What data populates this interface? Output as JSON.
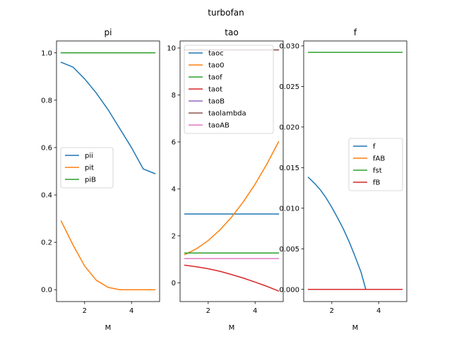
{
  "figure": {
    "suptitle": "turbofan",
    "background": "#ffffff",
    "colors": [
      "#1f77b4",
      "#ff7f0e",
      "#2ca02c",
      "#d62728",
      "#9467bd",
      "#8c564b",
      "#e377c2"
    ]
  },
  "chart_data": [
    {
      "type": "line",
      "title": "pi",
      "xlabel": "M",
      "ylabel": "",
      "xlim": [
        0.8,
        5.2
      ],
      "ylim": [
        -0.05,
        1.05
      ],
      "xticks": [
        2,
        4
      ],
      "xtick_labels": [
        "2",
        "4"
      ],
      "yticks": [
        0.0,
        0.2,
        0.4,
        0.6,
        0.8,
        1.0
      ],
      "ytick_labels": [
        "0.0",
        "0.2",
        "0.4",
        "0.6",
        "0.8",
        "1.0"
      ],
      "legend_position": "center-left",
      "x": [
        1.0,
        1.5,
        2.0,
        2.5,
        3.0,
        3.5,
        4.0,
        4.5,
        5.0
      ],
      "series": [
        {
          "name": "pii",
          "values": [
            0.96,
            0.94,
            0.89,
            0.83,
            0.76,
            0.68,
            0.6,
            0.51,
            0.49
          ]
        },
        {
          "name": "pit",
          "values": [
            0.29,
            0.19,
            0.1,
            0.04,
            0.01,
            0.0,
            0.0,
            0.0,
            0.0
          ]
        },
        {
          "name": "piB",
          "values": [
            1.0,
            1.0,
            1.0,
            1.0,
            1.0,
            1.0,
            1.0,
            1.0,
            1.0
          ]
        }
      ]
    },
    {
      "type": "line",
      "title": "tao",
      "xlabel": "M",
      "ylabel": "",
      "xlim": [
        0.8,
        5.2
      ],
      "ylim": [
        -0.8,
        10.3
      ],
      "xticks": [
        2,
        4
      ],
      "xtick_labels": [
        "2",
        "4"
      ],
      "yticks": [
        0,
        2,
        4,
        6,
        8,
        10
      ],
      "ytick_labels": [
        "0",
        "2",
        "4",
        "6",
        "8",
        "10"
      ],
      "legend_position": "upper-left",
      "x": [
        1.0,
        1.5,
        2.0,
        2.5,
        3.0,
        3.5,
        4.0,
        4.5,
        5.0
      ],
      "series": [
        {
          "name": "taoc",
          "values": [
            2.93,
            2.93,
            2.93,
            2.93,
            2.93,
            2.93,
            2.93,
            2.93,
            2.93
          ]
        },
        {
          "name": "tao0",
          "values": [
            1.2,
            1.45,
            1.8,
            2.25,
            2.8,
            3.45,
            4.2,
            5.05,
            6.0
          ]
        },
        {
          "name": "taof",
          "values": [
            1.27,
            1.27,
            1.27,
            1.27,
            1.27,
            1.27,
            1.27,
            1.27,
            1.27
          ]
        },
        {
          "name": "taot",
          "values": [
            0.75,
            0.68,
            0.6,
            0.49,
            0.35,
            0.2,
            0.03,
            -0.15,
            -0.35
          ]
        },
        {
          "name": "taoB",
          "values": [
            9.92,
            9.92,
            9.92,
            9.92,
            9.92,
            9.92,
            9.92,
            9.92,
            9.92
          ]
        },
        {
          "name": "taolambda",
          "values": [
            9.92,
            9.92,
            9.92,
            9.92,
            9.92,
            9.92,
            9.92,
            9.92,
            9.92
          ]
        },
        {
          "name": "taoAB",
          "values": [
            1.03,
            1.03,
            1.03,
            1.03,
            1.03,
            1.03,
            1.03,
            1.03,
            1.03
          ]
        }
      ]
    },
    {
      "type": "line",
      "title": "f",
      "xlabel": "M",
      "ylabel": "",
      "xlim": [
        0.8,
        5.2
      ],
      "ylim": [
        -0.0015,
        0.0306
      ],
      "xticks": [
        2,
        4
      ],
      "xtick_labels": [
        "2",
        "4"
      ],
      "yticks": [
        0.0,
        0.005,
        0.01,
        0.015,
        0.02,
        0.025,
        0.03
      ],
      "ytick_labels": [
        "0.000",
        "0.005",
        "0.010",
        "0.015",
        "0.020",
        "0.025",
        "0.030"
      ],
      "legend_position": "center-right",
      "x": [
        1.0,
        1.25,
        1.5,
        1.75,
        2.0,
        2.25,
        2.5,
        2.75,
        3.0,
        3.25,
        3.45,
        3.5,
        4.0,
        4.5,
        5.0
      ],
      "series": [
        {
          "name": "f",
          "values": [
            0.0138,
            0.0131,
            0.0123,
            0.0113,
            0.0101,
            0.0088,
            0.0074,
            0.0058,
            0.004,
            0.0021,
            0.0,
            0.0,
            0.0,
            0.0,
            0.0
          ]
        },
        {
          "name": "fAB",
          "values": [
            0.0,
            0.0,
            0.0,
            0.0,
            0.0,
            0.0,
            0.0,
            0.0,
            0.0,
            0.0,
            0.0,
            0.0,
            0.0,
            0.0,
            0.0
          ]
        },
        {
          "name": "fst",
          "values": [
            0.0292,
            0.0292,
            0.0292,
            0.0292,
            0.0292,
            0.0292,
            0.0292,
            0.0292,
            0.0292,
            0.0292,
            0.0292,
            0.0292,
            0.0292,
            0.0292,
            0.0292
          ]
        },
        {
          "name": "fB",
          "values": [
            0.0,
            0.0,
            0.0,
            0.0,
            0.0,
            0.0,
            0.0,
            0.0,
            0.0,
            0.0,
            0.0,
            0.0,
            0.0,
            0.0,
            0.0
          ]
        }
      ]
    }
  ]
}
